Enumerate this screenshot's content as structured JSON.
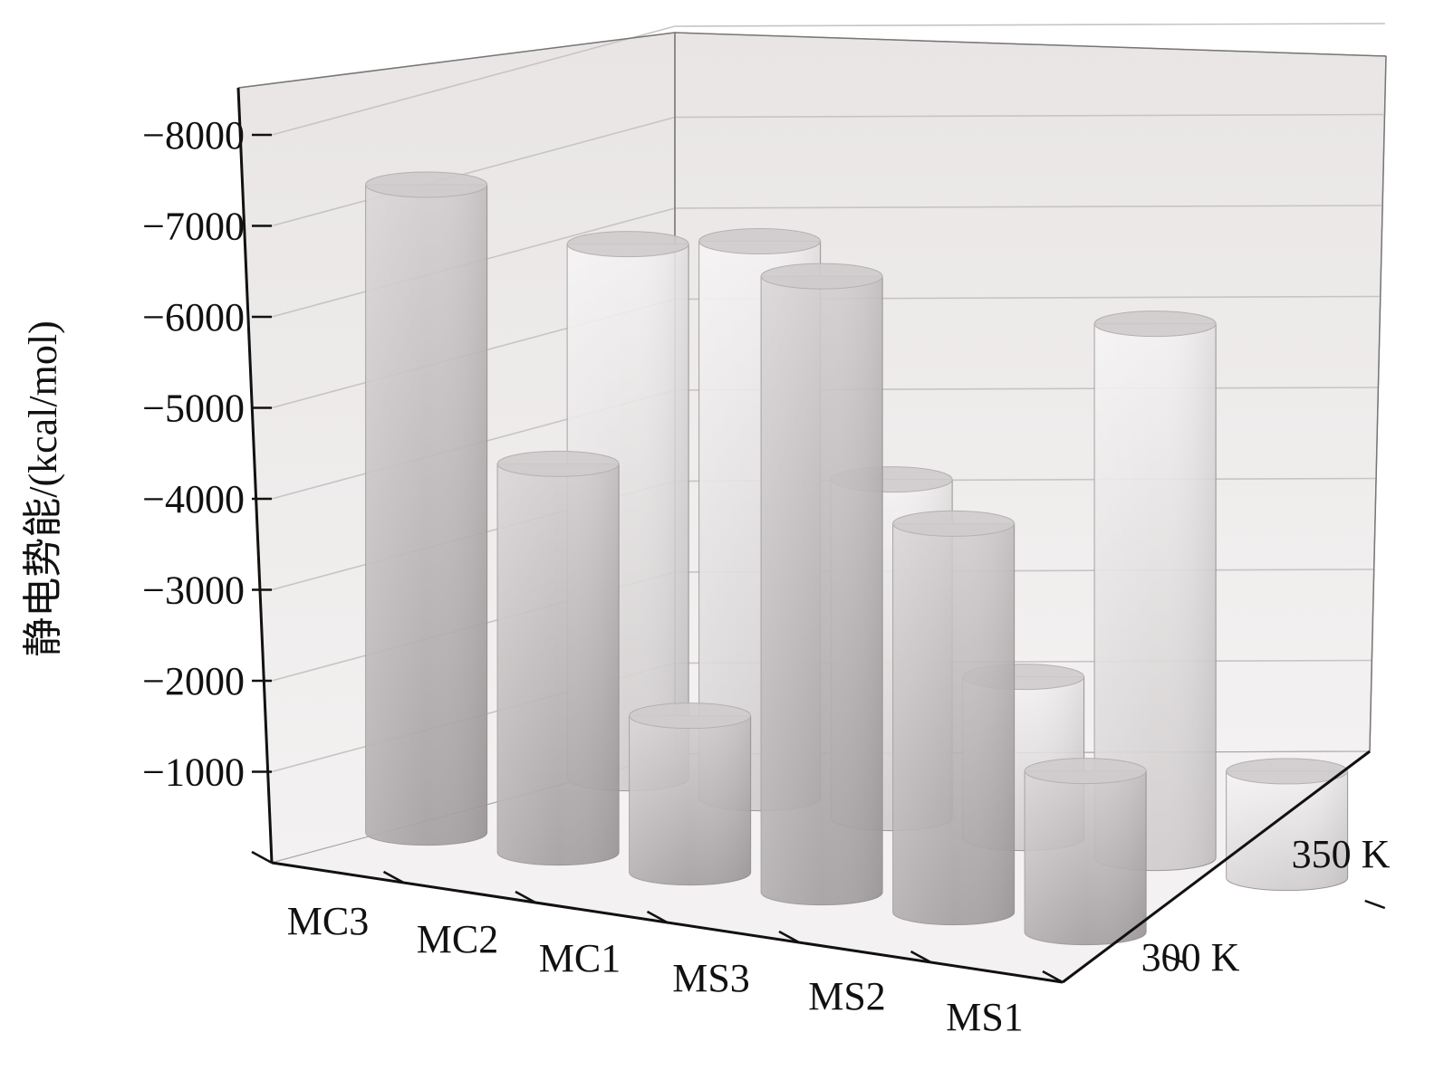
{
  "chart_data": {
    "type": "bar",
    "subtype": "3d-cylinder",
    "title": "",
    "ylabel": "静电势能/(kcal/mol)",
    "categories": [
      "MC3",
      "MC2",
      "MC1",
      "MS3",
      "MS2",
      "MS1"
    ],
    "series": [
      {
        "name": "300 K",
        "values": [
          -7300,
          -4450,
          -1900,
          -6950,
          -4450,
          -1950
        ]
      },
      {
        "name": "350 K",
        "values": [
          -6050,
          -6300,
          -3900,
          -1950,
          -6050,
          -1350
        ]
      }
    ],
    "yticks": [
      -1000,
      -2000,
      -3000,
      -4000,
      -5000,
      -6000,
      -7000,
      -8000
    ],
    "ytick_labels": [
      "−1000",
      "−2000",
      "−3000",
      "−4000",
      "−5000",
      "−6000",
      "−7000",
      "−8000"
    ],
    "ylim": [
      0,
      -8500
    ],
    "grid": true,
    "legend": "none",
    "colors": {
      "wall": "#ebe8e8",
      "floor": "#f4f2f2",
      "grid": "#c9c4c4",
      "frame": "#111111",
      "cyl_front_dark": "#aba6a7",
      "cyl_front_light": "#c9c4c5",
      "cyl_back_dark": "#d6d3d4",
      "cyl_back_light": "#f2f0f0"
    }
  }
}
